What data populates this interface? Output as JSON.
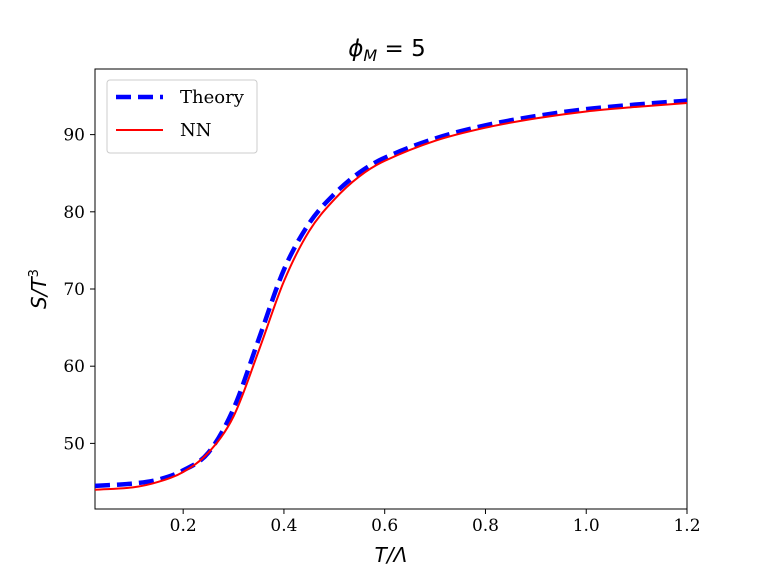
{
  "chart_data": {
    "type": "line",
    "title_main": "ϕ",
    "title_sub": "M",
    "title_rest": " = 5",
    "xlabel": "T/Λ",
    "ylabel_main": "S/T",
    "ylabel_sup": "3",
    "xlim": [
      0.025,
      1.2
    ],
    "ylim": [
      41.5,
      98.5
    ],
    "xticks": [
      0.2,
      0.4,
      0.6,
      0.8,
      1.0,
      1.2
    ],
    "xtick_labels": [
      "0.2",
      "0.4",
      "0.6",
      "0.8",
      "1.0",
      "1.2"
    ],
    "yticks": [
      50,
      60,
      70,
      80,
      90
    ],
    "ytick_labels": [
      "50",
      "60",
      "70",
      "80",
      "90"
    ],
    "grid": false,
    "legend_position": "top-left",
    "series": [
      {
        "name": "Theory",
        "color": "#0000ff",
        "style": "dashed",
        "x": [
          0.025,
          0.1,
          0.15,
          0.2,
          0.25,
          0.3,
          0.35,
          0.4,
          0.45,
          0.5,
          0.55,
          0.6,
          0.7,
          0.8,
          0.9,
          1.0,
          1.1,
          1.2
        ],
        "y": [
          44.5,
          44.8,
          45.3,
          46.5,
          48.8,
          54.5,
          63.5,
          72.5,
          78.5,
          82.3,
          85.1,
          87.0,
          89.5,
          91.2,
          92.4,
          93.3,
          93.9,
          94.4
        ]
      },
      {
        "name": "NN",
        "color": "#ff0000",
        "style": "solid",
        "x": [
          0.025,
          0.1,
          0.15,
          0.2,
          0.25,
          0.3,
          0.35,
          0.4,
          0.45,
          0.5,
          0.55,
          0.6,
          0.7,
          0.8,
          0.9,
          1.0,
          1.1,
          1.2
        ],
        "y": [
          44.0,
          44.3,
          45.0,
          46.3,
          48.8,
          53.5,
          62.0,
          71.0,
          77.5,
          81.6,
          84.6,
          86.6,
          89.2,
          90.9,
          92.1,
          93.0,
          93.6,
          94.1
        ]
      }
    ]
  }
}
